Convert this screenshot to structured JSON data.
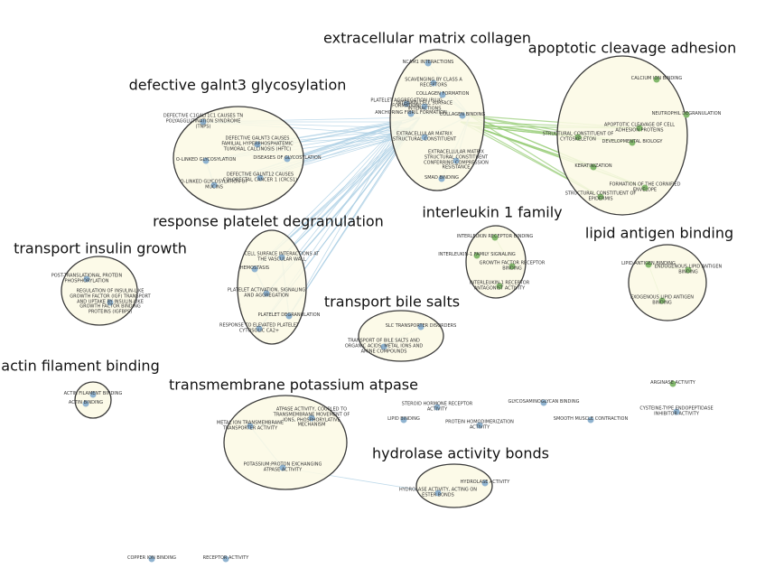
{
  "clusters": [
    {
      "label": "extracellular matrix collagen",
      "nodes": [
        {
          "label": "NCAM1 INTERACTIONS"
        },
        {
          "label": "SCAVENGING BY CLASS A RECEPTORS"
        },
        {
          "label": "COLLAGEN FORMATION"
        },
        {
          "label": "PLATELET AGGREGATION (PLUG FORMATION)"
        },
        {
          "label": "INTEGRIN CELL SURFACE INTERACTIONS"
        },
        {
          "label": "ANCHORING FIBRIL FORMATION"
        },
        {
          "label": "COLLAGEN BINDING"
        },
        {
          "label": "EXTRACELLULAR MATRIX STRUCTURAL CONSTITUENT"
        },
        {
          "label": "EXTRACELLULAR MATRIX STRUCTURAL CONSTITUENT CONFERRING COMPRESSION RESISTANCE"
        },
        {
          "label": "SMAD BINDING"
        }
      ]
    },
    {
      "label": "apoptotic cleavage adhesion",
      "nodes": [
        {
          "label": "CALCIUM ION BINDING"
        },
        {
          "label": "NEUTROPHIL DEGRANULATION"
        },
        {
          "label": "APOPTOTIC CLEAVAGE OF CELL ADHESION PROTEINS"
        },
        {
          "label": "STRUCTURAL CONSTITUENT OF CYTOSKELETON"
        },
        {
          "label": "DEVELOPMENTAL BIOLOGY"
        },
        {
          "label": "KERATINIZATION"
        },
        {
          "label": "FORMATION OF THE CORNIFIED ENVELOPE"
        },
        {
          "label": "STRUCTURAL CONSTITUENT OF EPIDERMIS"
        }
      ]
    },
    {
      "label": "defective galnt3 glycosylation",
      "nodes": [
        {
          "label": "DEFECTIVE C1GALT1C1 CAUSES TN POLYAGGLUTINATION SYNDROME (TNPS)"
        },
        {
          "label": "DEFECTIVE GALNT3 CAUSES FAMILIAL HYPERPHOSPHATEMIC TUMORAL CALCINOSIS (HFTC)"
        },
        {
          "label": "O-LINKED GLYCOSYLATION"
        },
        {
          "label": "DISEASES OF GLYCOSYLATION"
        },
        {
          "label": "DEFECTIVE GALNT12 CAUSES COLORECTAL CANCER 1 (CRCS1)"
        },
        {
          "label": "O-LINKED GLYCOSYLATION OF MUCINS"
        }
      ]
    },
    {
      "label": "response platelet degranulation",
      "nodes": [
        {
          "label": "CELL SURFACE INTERACTIONS AT THE VASCULAR WALL"
        },
        {
          "label": "HEMOSTASIS"
        },
        {
          "label": "PLATELET ACTIVATION, SIGNALING AND AGGREGATION"
        },
        {
          "label": "PLATELET DEGRANULATION"
        },
        {
          "label": "RESPONSE TO ELEVATED PLATELET CYTOSOLIC CA2+"
        }
      ]
    },
    {
      "label": "interleukin 1 family",
      "nodes": [
        {
          "label": "INTERLEUKIN RECEPTOR BINDING"
        },
        {
          "label": "INTERLEUKIN-1 FAMILY SIGNALING"
        },
        {
          "label": "GROWTH FACTOR RECEPTOR BINDING"
        },
        {
          "label": "INTERLEUKIN-1 RECEPTOR ANTAGONIST ACTIVITY"
        }
      ]
    },
    {
      "label": "lipid antigen binding",
      "nodes": [
        {
          "label": "LIPID ANTIGEN BINDING"
        },
        {
          "label": "ENDOGENOUS LIPID ANTIGEN BINDING"
        },
        {
          "label": "EXOGENOUS LIPID ANTIGEN BINDING"
        }
      ]
    },
    {
      "label": "transport insulin growth",
      "nodes": [
        {
          "label": "POST-TRANSLATIONAL PROTEIN PHOSPHORYLATION"
        },
        {
          "label": "REGULATION OF INSULIN-LIKE GROWTH FACTOR (IGF) TRANSPORT AND UPTAKE BY INSULIN-LIKE GROWTH FACTOR BINDING PROTEINS (IGFBPS)"
        }
      ]
    },
    {
      "label": "transport bile salts",
      "nodes": [
        {
          "label": "SLC TRANSPORTER DISORDERS"
        },
        {
          "label": "TRANSPORT OF BILE SALTS AND ORGANIC ACIDS, METAL IONS AND AMINE COMPOUNDS"
        }
      ]
    },
    {
      "label": "actin filament binding",
      "nodes": [
        {
          "label": "ACTIN FILAMENT BINDING"
        },
        {
          "label": "ACTIN BINDING"
        }
      ]
    },
    {
      "label": "transmembrane potassium atpase",
      "nodes": [
        {
          "label": "ATPASE ACTIVITY, COUPLED TO TRANSMEMBRANE MOVEMENT OF IONS, PHOSPHORYLATIVE MECHANISM"
        },
        {
          "label": "METAL ION TRANSMEMBRANE TRANSPORTER ACTIVITY"
        },
        {
          "label": "POTASSIUM:PROTON EXCHANGING ATPASE ACTIVITY"
        }
      ]
    },
    {
      "label": "hydrolase activity bonds",
      "nodes": [
        {
          "label": "HYDROLASE ACTIVITY"
        },
        {
          "label": "HYDROLASE ACTIVITY, ACTING ON ESTER BONDS"
        }
      ]
    }
  ],
  "singletons": [
    {
      "label": "ARGINASE ACTIVITY"
    },
    {
      "label": "CYSTEINE-TYPE ENDOPEPTIDASE INHIBITOR ACTIVITY"
    },
    {
      "label": "STEROID HORMONE RECEPTOR ACTIVITY"
    },
    {
      "label": "GLYCOSAMINOGLYCAN BINDING"
    },
    {
      "label": "LIPID BINDING"
    },
    {
      "label": "PROTEIN HOMODIMERIZATION ACTIVITY"
    },
    {
      "label": "SMOOTH MUSCLE CONTRACTION"
    },
    {
      "label": "COPPER ION BINDING"
    },
    {
      "label": "RECEPTOR ACTIVITY"
    }
  ]
}
